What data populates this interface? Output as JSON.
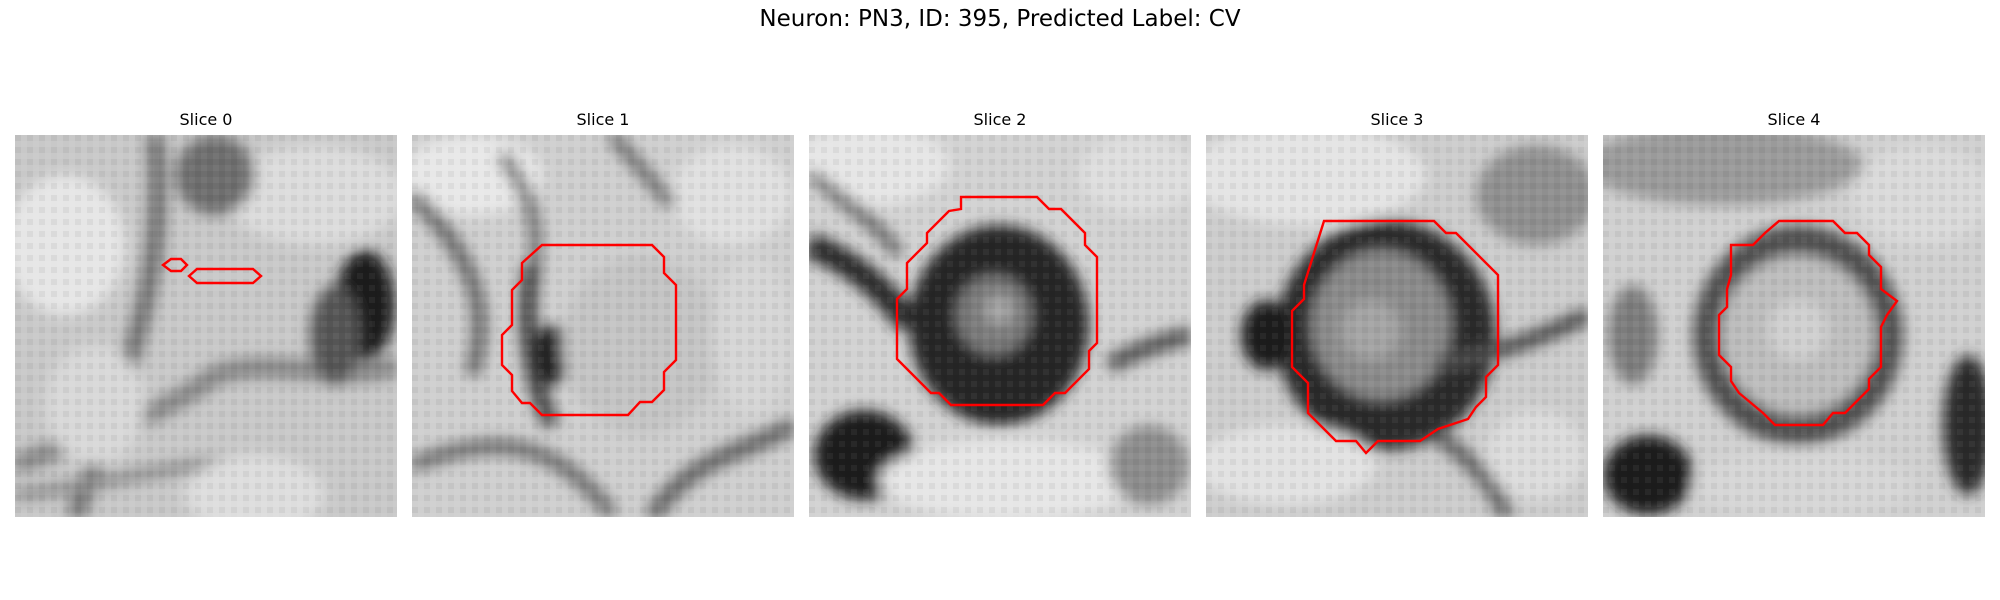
{
  "figure": {
    "title": "Neuron: PN3, ID: 395, Predicted Label: CV"
  },
  "panels": [
    {
      "title": "Slice 0"
    },
    {
      "title": "Slice 1"
    },
    {
      "title": "Slice 2"
    },
    {
      "title": "Slice 3"
    },
    {
      "title": "Slice 4"
    }
  ],
  "colors": {
    "contour": "#ff0000"
  }
}
